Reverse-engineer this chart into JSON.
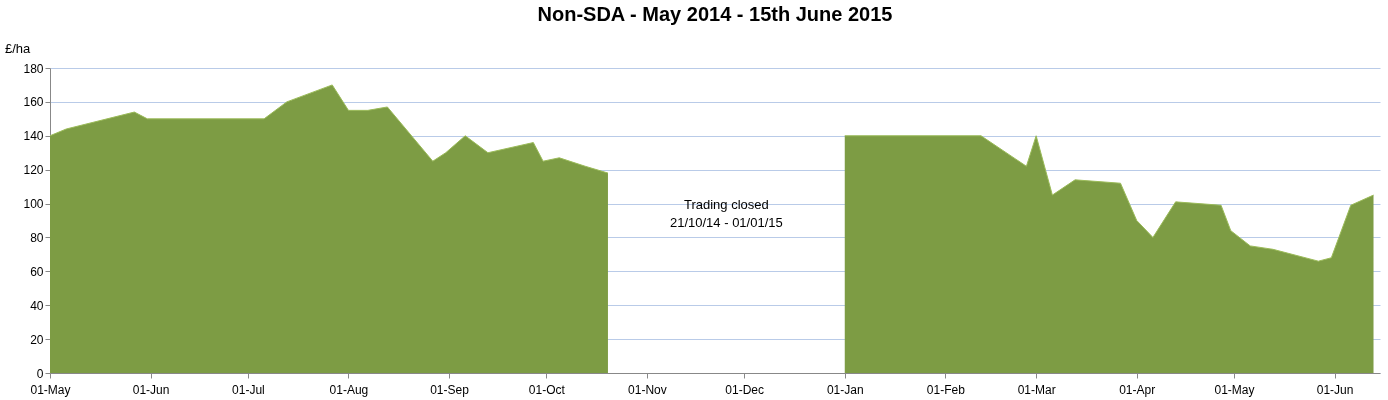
{
  "chart_data": {
    "type": "area",
    "title": "Non-SDA - May 2014 - 15th June 2015",
    "ylabel": "£/ha",
    "x": [
      "2014-05-01",
      "2014-05-06",
      "2014-05-27",
      "2014-05-31",
      "2014-07-06",
      "2014-07-13",
      "2014-07-27",
      "2014-08-01",
      "2014-08-07",
      "2014-08-13",
      "2014-08-27",
      "2014-08-31",
      "2014-09-06",
      "2014-09-13",
      "2014-09-27",
      "2014-09-30",
      "2014-10-05",
      "2014-10-13",
      "2014-10-20",
      "2014-11-20",
      "2015-01-01",
      "2015-02-12",
      "2015-02-26",
      "2015-03-01",
      "2015-03-06",
      "2015-03-13",
      "2015-03-27",
      "2015-04-01",
      "2015-04-06",
      "2015-04-13",
      "2015-04-27",
      "2015-04-30",
      "2015-05-06",
      "2015-05-13",
      "2015-05-27",
      "2015-05-31",
      "2015-06-06",
      "2015-06-13"
    ],
    "series": [
      {
        "color": "#7d9c44",
        "values": [
          140,
          144,
          154,
          150,
          150,
          160,
          170,
          155,
          155,
          157,
          125,
          130,
          140,
          130,
          136,
          125,
          127,
          122,
          118,
          null,
          140,
          140,
          122,
          140,
          105,
          114,
          112,
          90,
          80,
          101,
          99,
          84,
          75,
          73,
          66,
          68,
          99,
          105
        ]
      }
    ],
    "xlim": [
      "2014-05-01",
      "2015-06-15"
    ],
    "xticks": [
      {
        "value": "2014-05-01",
        "label": "01-May"
      },
      {
        "value": "2014-06-01",
        "label": "01-Jun"
      },
      {
        "value": "2014-07-01",
        "label": "01-Jul"
      },
      {
        "value": "2014-08-01",
        "label": "01-Aug"
      },
      {
        "value": "2014-09-01",
        "label": "01-Sep"
      },
      {
        "value": "2014-10-01",
        "label": "01-Oct"
      },
      {
        "value": "2014-11-01",
        "label": "01-Nov"
      },
      {
        "value": "2014-12-01",
        "label": "01-Dec"
      },
      {
        "value": "2015-01-01",
        "label": "01-Jan"
      },
      {
        "value": "2015-02-01",
        "label": "01-Feb"
      },
      {
        "value": "2015-03-01",
        "label": "01-Mar"
      },
      {
        "value": "2015-04-01",
        "label": "01-Apr"
      },
      {
        "value": "2015-05-01",
        "label": "01-May"
      },
      {
        "value": "2015-06-01",
        "label": "01-Jun"
      }
    ],
    "ylim": [
      0,
      180
    ],
    "yticks": [
      0,
      20,
      40,
      60,
      80,
      100,
      120,
      140,
      160,
      180
    ],
    "grid": "y",
    "annotations": [
      "Trading closed\n21/10/14 - 01/01/15"
    ]
  }
}
